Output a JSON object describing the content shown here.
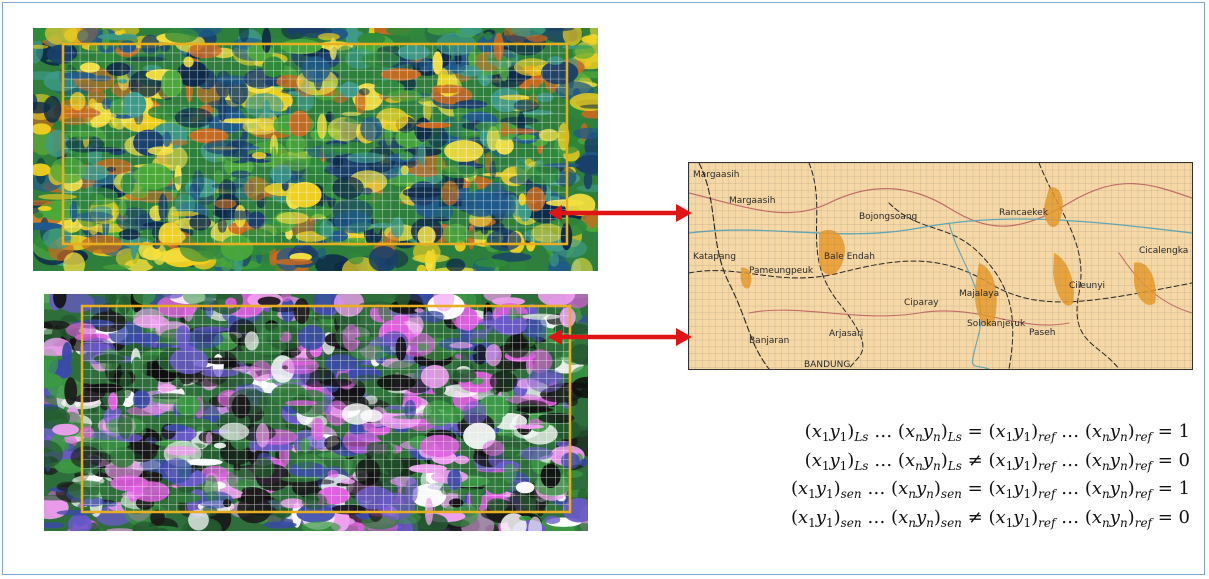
{
  "colors": {
    "frame_border": "#7fa7cf",
    "arrow": "#e01414",
    "grid_box": "#e8b020",
    "map_background": "#f5d8a6",
    "map_patches": "#e89a2a"
  },
  "map_labels": [
    "Margaasih",
    "Margaasih",
    "Katapang",
    "Pameungpeuk",
    "Bojongsoang",
    "Rancaekek",
    "Cicalengka",
    "Cileunyi",
    "Majalaya",
    "Ciparay",
    "Solokanjeruk",
    "Paseh",
    "Arjasari",
    "Banjaran",
    "Bale Endah",
    "BANDUNG"
  ],
  "equations": [
    {
      "lhs_a": "Ls",
      "lhs_b": "Ls",
      "op": "=",
      "rhs_a": "ref",
      "rhs_b": "ref",
      "result": "1"
    },
    {
      "lhs_a": "Ls",
      "lhs_b": "Ls",
      "op": "≠",
      "rhs_a": "ref",
      "rhs_b": "ref",
      "result": "0"
    },
    {
      "lhs_a": "sen",
      "lhs_b": "sen",
      "op": "=",
      "rhs_a": "ref",
      "rhs_b": "ref",
      "result": "1"
    },
    {
      "lhs_a": "sen",
      "lhs_b": "sen",
      "op": "≠",
      "rhs_a": "ref",
      "rhs_b": "ref",
      "result": "0"
    }
  ]
}
